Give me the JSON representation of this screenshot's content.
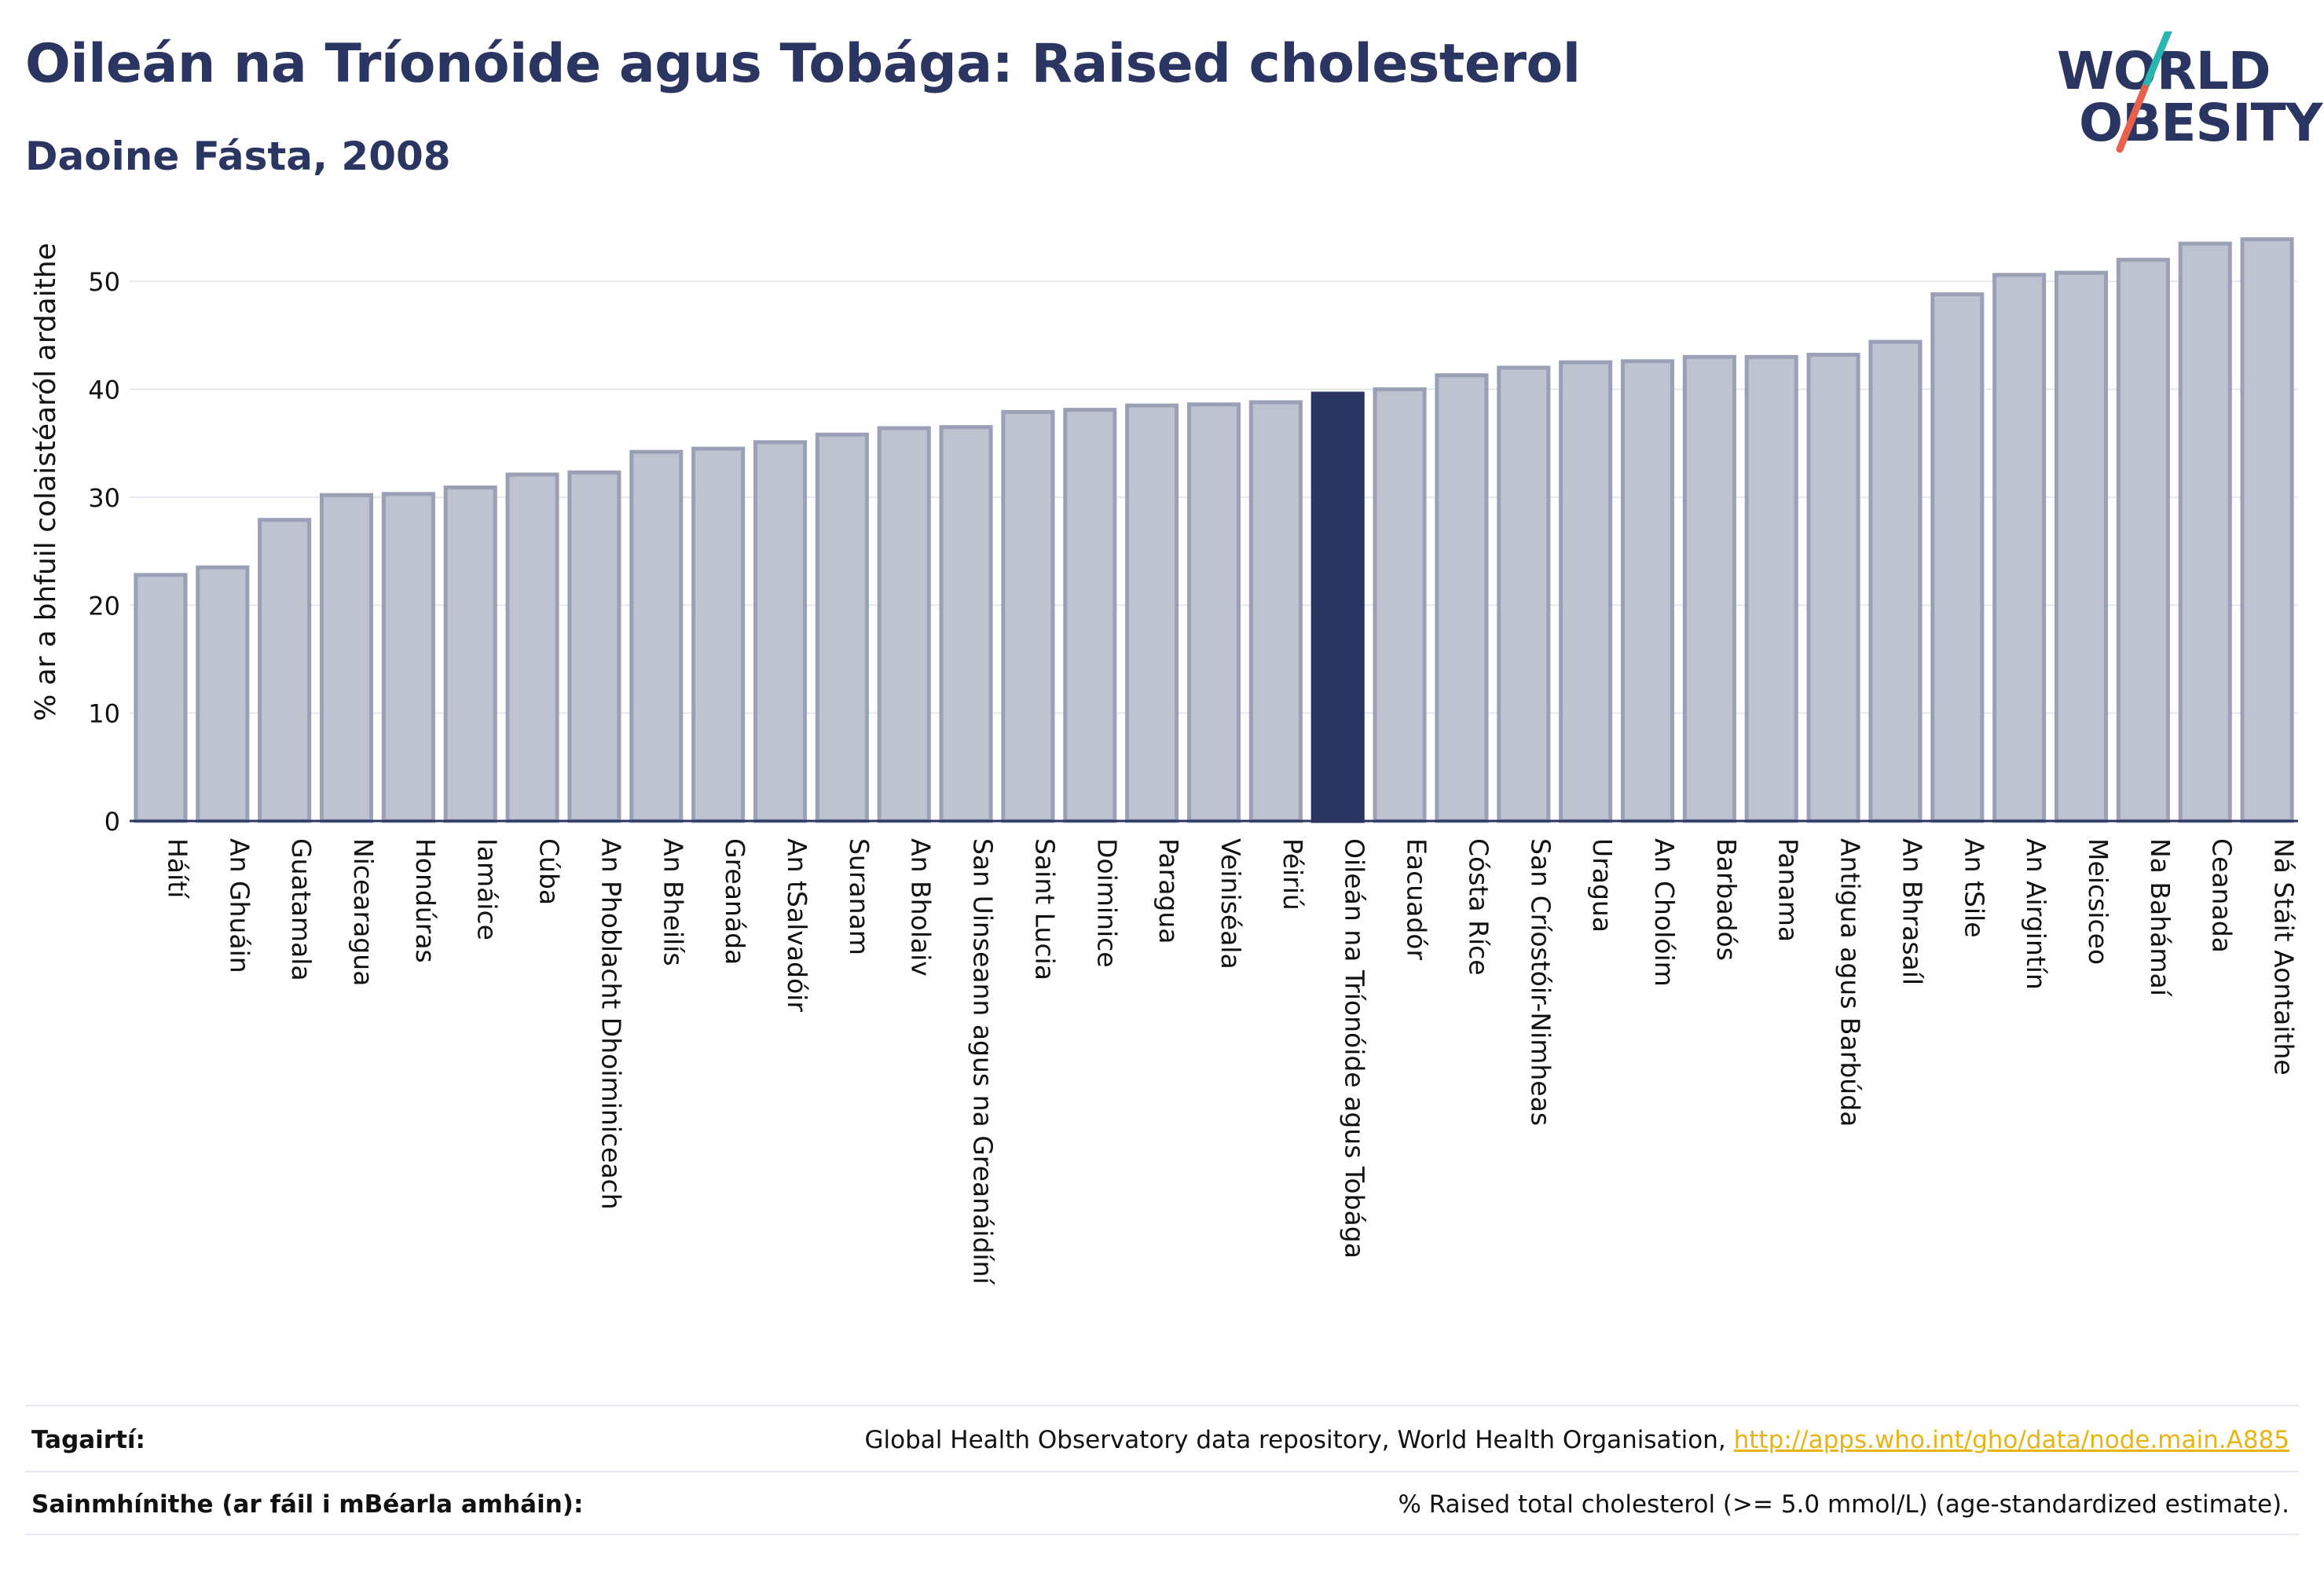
{
  "header": {
    "title": "Oileán na Tríonóide agus Tobága: Raised cholesterol",
    "subtitle": "Daoine Fásta, 2008"
  },
  "logo": {
    "line1": "WORLD",
    "line2": "OBESITY",
    "colors": {
      "text": "#2b3561",
      "slash_top": "#2bb5b0",
      "slash_bottom": "#e8614d"
    }
  },
  "chart_data": {
    "type": "bar",
    "title": "",
    "xlabel": "",
    "ylabel": "% ar a bhfuil colaistéaról ardaithe",
    "ylim": [
      0,
      57
    ],
    "yticks": [
      0,
      10,
      20,
      30,
      40,
      50
    ],
    "grid": true,
    "highlight_category": "Oileán na Tríonóide agus Tobága",
    "colors": {
      "bar": "#bfc3d0",
      "bar_edge": "#9aa0b6",
      "highlight": "#2b3561",
      "grid": "#e6e8ef",
      "axis": "#2b3561"
    },
    "categories": [
      "Háítí",
      "An Ghuáin",
      "Guatamala",
      "Nicearagua",
      "Hondúras",
      "Iamáice",
      "Cúba",
      "An Phoblacht Dhoiminiceach",
      "An Bheilís",
      "Greanáda",
      "An tSalvadóir",
      "Suranam",
      "An Bholaiv",
      "San Uinseann agus na Greanáidíní",
      "Saint Lucia",
      "Doiminice",
      "Paragua",
      "Veiniséala",
      "Péiriú",
      "Oileán na Tríonóide agus Tobága",
      "Eacuadór",
      "Cósta Ríce",
      "San Críostóir-Nimheas",
      "Uragua",
      "An Cholóim",
      "Barbadós",
      "Panama",
      "Antigua agus Barbúda",
      "An Bhrasaíl",
      "An tSile",
      "An Airgintín",
      "Meicsiceo",
      "Na Bahámaí",
      "Ceanada",
      "Ná Stáit Aontaithe"
    ],
    "values": [
      22.8,
      23.5,
      27.9,
      30.2,
      30.3,
      30.9,
      32.1,
      32.3,
      34.2,
      34.5,
      35.1,
      35.8,
      36.4,
      36.5,
      37.9,
      38.1,
      38.5,
      38.6,
      38.8,
      39.6,
      40.0,
      41.3,
      42.0,
      42.5,
      42.6,
      43.0,
      43.0,
      43.2,
      44.4,
      48.8,
      50.6,
      50.8,
      52.0,
      53.5,
      53.9
    ]
  },
  "footer": {
    "references_label": "Tagairtí:",
    "references_text": "Global Health Observatory data repository, World Health Organisation, ",
    "references_link": "http://apps.who.int/gho/data/node.main.A885",
    "definitions_label": "Sainmhínithe (ar fáil i mBéarla amháin):",
    "definitions_text": "% Raised total cholesterol (>= 5.0 mmol/L) (age-standardized estimate)."
  }
}
